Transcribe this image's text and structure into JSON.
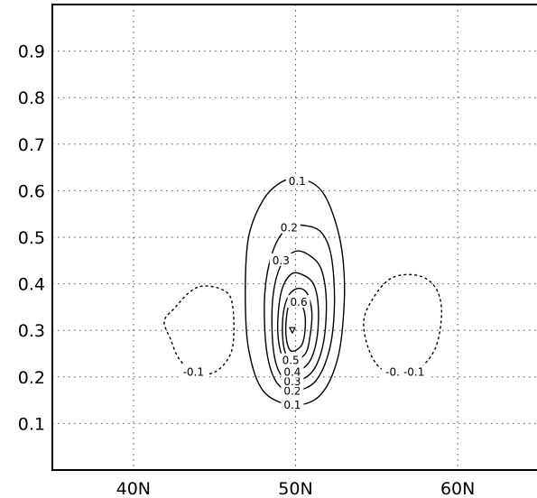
{
  "chart_data": {
    "type": "contour",
    "title": "",
    "xlabel": "",
    "ylabel": "",
    "xlim": [
      35,
      65
    ],
    "ylim": [
      1.0,
      0.0
    ],
    "y_axis_inverted": true,
    "grid": true,
    "x_ticks": [
      {
        "value": 40,
        "label": "40N"
      },
      {
        "value": 50,
        "label": "50N"
      },
      {
        "value": 60,
        "label": "60N"
      }
    ],
    "y_ticks": [
      {
        "value": 0.1,
        "label": "0.1"
      },
      {
        "value": 0.2,
        "label": "0.2"
      },
      {
        "value": 0.3,
        "label": "0.3"
      },
      {
        "value": 0.4,
        "label": "0.4"
      },
      {
        "value": 0.5,
        "label": "0.5"
      },
      {
        "value": 0.6,
        "label": "0.6"
      },
      {
        "value": 0.7,
        "label": "0.7"
      },
      {
        "value": 0.8,
        "label": "0.8"
      },
      {
        "value": 0.9,
        "label": "0.9"
      }
    ],
    "positive_center": {
      "x": 49.8,
      "y": 0.3
    },
    "contours": [
      {
        "level": 0.1,
        "label": "0.1",
        "style": "solid",
        "points": [
          [
            49.8,
            0.14
          ],
          [
            51.5,
            0.16
          ],
          [
            52.6,
            0.24
          ],
          [
            53,
            0.36
          ],
          [
            52.9,
            0.46
          ],
          [
            52.4,
            0.54
          ],
          [
            51.6,
            0.6
          ],
          [
            50.4,
            0.625
          ],
          [
            49.2,
            0.62
          ],
          [
            48,
            0.58
          ],
          [
            47.1,
            0.5
          ],
          [
            46.9,
            0.38
          ],
          [
            47.1,
            0.26
          ],
          [
            48,
            0.17
          ]
        ],
        "labels": [
          {
            "x": 49.8,
            "y": 0.14,
            "text": "0.1"
          },
          {
            "x": 50.1,
            "y": 0.62,
            "text": "0.1"
          }
        ]
      },
      {
        "level": 0.2,
        "label": "0.2",
        "style": "solid",
        "points": [
          [
            49.8,
            0.17
          ],
          [
            51.2,
            0.19
          ],
          [
            52.1,
            0.26
          ],
          [
            52.4,
            0.36
          ],
          [
            52.2,
            0.46
          ],
          [
            51.6,
            0.51
          ],
          [
            50.6,
            0.525
          ],
          [
            49.5,
            0.52
          ],
          [
            48.6,
            0.47
          ],
          [
            48.1,
            0.38
          ],
          [
            48.2,
            0.26
          ],
          [
            48.8,
            0.19
          ]
        ],
        "labels": [
          {
            "x": 49.8,
            "y": 0.17,
            "text": "0.2"
          },
          {
            "x": 49.6,
            "y": 0.52,
            "text": "0.2"
          }
        ]
      },
      {
        "level": 0.3,
        "label": "0.3",
        "style": "solid",
        "points": [
          [
            49.8,
            0.19
          ],
          [
            51,
            0.21
          ],
          [
            51.7,
            0.27
          ],
          [
            51.9,
            0.36
          ],
          [
            51.6,
            0.43
          ],
          [
            50.9,
            0.46
          ],
          [
            50,
            0.47
          ],
          [
            49.1,
            0.44
          ],
          [
            48.6,
            0.37
          ],
          [
            48.6,
            0.27
          ],
          [
            49,
            0.21
          ]
        ],
        "labels": [
          {
            "x": 49.8,
            "y": 0.19,
            "text": "0.3"
          },
          {
            "x": 49.1,
            "y": 0.45,
            "text": "0.3"
          }
        ]
      },
      {
        "level": 0.4,
        "label": "0.4",
        "style": "solid",
        "points": [
          [
            49.8,
            0.21
          ],
          [
            50.8,
            0.23
          ],
          [
            51.3,
            0.28
          ],
          [
            51.4,
            0.35
          ],
          [
            51.1,
            0.4
          ],
          [
            50.4,
            0.42
          ],
          [
            49.7,
            0.42
          ],
          [
            49.1,
            0.38
          ],
          [
            48.9,
            0.3
          ],
          [
            49.2,
            0.24
          ]
        ],
        "labels": [
          {
            "x": 49.8,
            "y": 0.21,
            "text": "0.4"
          }
        ]
      },
      {
        "level": 0.5,
        "label": "0.5",
        "style": "solid",
        "points": [
          [
            49.8,
            0.235
          ],
          [
            50.6,
            0.25
          ],
          [
            50.9,
            0.29
          ],
          [
            51,
            0.34
          ],
          [
            50.7,
            0.38
          ],
          [
            50.1,
            0.39
          ],
          [
            49.5,
            0.37
          ],
          [
            49.2,
            0.32
          ],
          [
            49.3,
            0.26
          ]
        ],
        "labels": [
          {
            "x": 49.7,
            "y": 0.235,
            "text": "0.5"
          }
        ]
      },
      {
        "level": 0.6,
        "label": "0.6",
        "style": "solid",
        "points": [
          [
            49.8,
            0.255
          ],
          [
            50.4,
            0.27
          ],
          [
            50.6,
            0.31
          ],
          [
            50.5,
            0.345
          ],
          [
            50.1,
            0.36
          ],
          [
            49.6,
            0.355
          ],
          [
            49.4,
            0.31
          ],
          [
            49.5,
            0.27
          ]
        ],
        "labels": [
          {
            "x": 50.2,
            "y": 0.36,
            "text": "0.6"
          }
        ]
      },
      {
        "level": -0.1,
        "label": "-0.1",
        "style": "dashed",
        "points": [
          [
            43.7,
            0.21
          ],
          [
            45,
            0.21
          ],
          [
            46,
            0.25
          ],
          [
            46.2,
            0.31
          ],
          [
            46,
            0.37
          ],
          [
            45.3,
            0.39
          ],
          [
            44.2,
            0.395
          ],
          [
            43.4,
            0.38
          ],
          [
            42.6,
            0.35
          ],
          [
            41.9,
            0.32
          ],
          [
            42.3,
            0.28
          ],
          [
            42.8,
            0.24
          ]
        ],
        "labels": [
          {
            "x": 43.7,
            "y": 0.21,
            "text": "-0.1"
          }
        ]
      },
      {
        "level": -0.1,
        "label": "-0.1",
        "style": "dashed",
        "points": [
          [
            56.2,
            0.21
          ],
          [
            57.5,
            0.215
          ],
          [
            58.6,
            0.26
          ],
          [
            59,
            0.33
          ],
          [
            58.8,
            0.38
          ],
          [
            58.1,
            0.41
          ],
          [
            57,
            0.42
          ],
          [
            55.8,
            0.41
          ],
          [
            54.8,
            0.37
          ],
          [
            54.2,
            0.32
          ],
          [
            54.5,
            0.26
          ],
          [
            55.2,
            0.22
          ]
        ],
        "labels": [
          {
            "x": 56.2,
            "y": 0.21,
            "text": "-0.1"
          },
          {
            "x": 57.3,
            "y": 0.21,
            "text": "-0.1"
          }
        ]
      }
    ]
  }
}
